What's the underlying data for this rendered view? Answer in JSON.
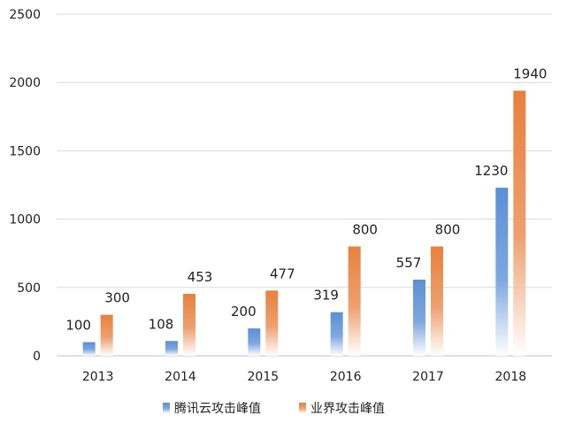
{
  "chart_data": {
    "type": "bar",
    "categories": [
      "2013",
      "2014",
      "2015",
      "2016",
      "2017",
      "2018"
    ],
    "series": [
      {
        "name": "腾讯云攻击峰值",
        "values": [
          100,
          108,
          200,
          319,
          557,
          1230
        ],
        "color": "#5b8fd4"
      },
      {
        "name": "业界攻击峰值",
        "values": [
          300,
          453,
          477,
          800,
          800,
          1940
        ],
        "color": "#e8803d"
      }
    ],
    "yticks": [
      "0",
      "500",
      "1000",
      "1500",
      "2000",
      "2500"
    ],
    "ylim": [
      0,
      2500
    ],
    "grid": true,
    "legend_position": "bottom"
  }
}
